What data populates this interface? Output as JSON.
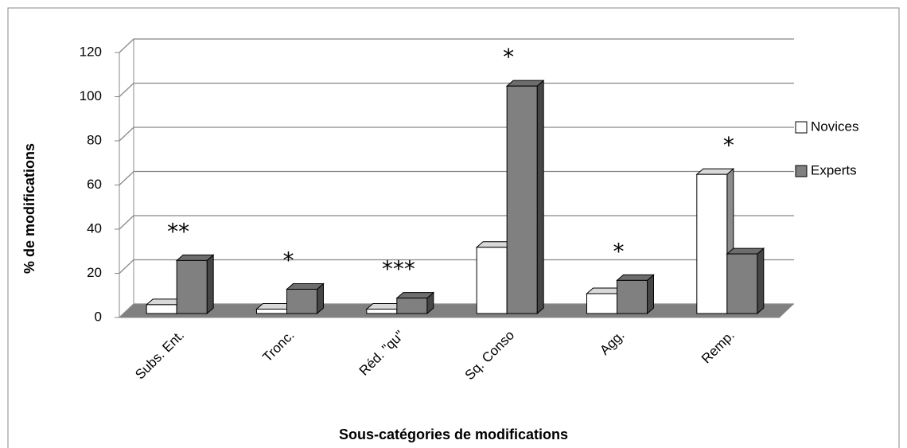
{
  "chart_data": {
    "type": "bar3d",
    "xlabel": "Sous-catégories de modifications",
    "ylabel": "% de modifications",
    "categories": [
      "Subs. Ent.",
      "Tronc.",
      "Réd. \"qu\"",
      "Sq. Conso",
      "Agg.",
      "Remp."
    ],
    "series": [
      {
        "name": "Novices",
        "color": "#ffffff",
        "values": [
          4,
          2,
          2,
          30,
          9,
          63
        ]
      },
      {
        "name": "Experts",
        "color": "#808080",
        "values": [
          24,
          11,
          7,
          103,
          15,
          27
        ]
      }
    ],
    "annotations": [
      "**",
      "*",
      "***",
      "*",
      "*",
      "*"
    ],
    "ylim": [
      0,
      120
    ],
    "yticks": [
      0,
      20,
      40,
      60,
      80,
      100,
      120
    ],
    "grid": true,
    "legend": "right"
  }
}
